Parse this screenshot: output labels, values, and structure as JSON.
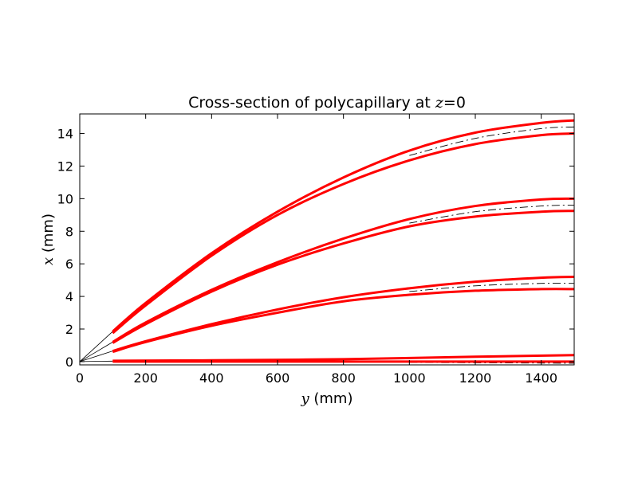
{
  "chart_data": {
    "type": "line",
    "title": {
      "text": "Cross-section of polycapillary at ",
      "var": "z",
      "suffix": "=0"
    },
    "xlabel": {
      "var": "y",
      "text": " (mm)"
    },
    "ylabel": {
      "var": "x",
      "text": " (mm)"
    },
    "xlim": [
      0,
      1500
    ],
    "ylim": [
      -0.2,
      15.2
    ],
    "xticks": [
      0,
      200,
      400,
      600,
      800,
      1000,
      1200,
      1400
    ],
    "yticks": [
      0,
      2,
      4,
      6,
      8,
      10,
      12,
      14
    ],
    "grid": false,
    "legend": "none",
    "series": [
      {
        "kind": "wall",
        "style": "red-solid",
        "x": [
          100,
          200,
          400,
          600,
          800,
          1000,
          1200,
          1400,
          1500
        ],
        "y": [
          1.85,
          3.6,
          6.65,
          9.2,
          11.3,
          12.95,
          14.05,
          14.65,
          14.8
        ]
      },
      {
        "kind": "wall",
        "style": "red-solid",
        "x": [
          100,
          200,
          400,
          600,
          800,
          1000,
          1200,
          1400,
          1500
        ],
        "y": [
          1.75,
          3.45,
          6.5,
          9.0,
          10.9,
          12.35,
          13.35,
          13.9,
          14.0
        ]
      },
      {
        "kind": "center",
        "style": "black-dashdot",
        "x": [
          1000,
          1200,
          1400,
          1500
        ],
        "y": [
          12.65,
          13.7,
          14.3,
          14.4
        ]
      },
      {
        "kind": "wall",
        "style": "red-solid",
        "x": [
          100,
          200,
          400,
          600,
          800,
          1000,
          1200,
          1400,
          1500
        ],
        "y": [
          1.2,
          2.4,
          4.4,
          6.1,
          7.55,
          8.75,
          9.55,
          9.95,
          10.0
        ]
      },
      {
        "kind": "wall",
        "style": "red-solid",
        "x": [
          100,
          200,
          400,
          600,
          800,
          1000,
          1200,
          1400,
          1500
        ],
        "y": [
          1.15,
          2.3,
          4.3,
          5.95,
          7.25,
          8.3,
          8.9,
          9.2,
          9.25
        ]
      },
      {
        "kind": "center",
        "style": "black-dashdot",
        "x": [
          1000,
          1200,
          1400,
          1500
        ],
        "y": [
          8.5,
          9.2,
          9.55,
          9.6
        ]
      },
      {
        "kind": "wall",
        "style": "red-solid",
        "x": [
          100,
          200,
          400,
          600,
          800,
          1000,
          1200,
          1400,
          1500
        ],
        "y": [
          0.65,
          1.25,
          2.3,
          3.2,
          3.95,
          4.5,
          4.9,
          5.15,
          5.2
        ]
      },
      {
        "kind": "wall",
        "style": "red-solid",
        "x": [
          100,
          200,
          400,
          600,
          800,
          1000,
          1200,
          1400,
          1500
        ],
        "y": [
          0.6,
          1.2,
          2.2,
          3.0,
          3.7,
          4.1,
          4.35,
          4.45,
          4.45
        ]
      },
      {
        "kind": "center",
        "style": "black-dashdot",
        "x": [
          1000,
          1200,
          1400,
          1500
        ],
        "y": [
          4.3,
          4.65,
          4.8,
          4.8
        ]
      },
      {
        "kind": "wall",
        "style": "red-solid",
        "x": [
          100,
          400,
          800,
          1200,
          1500
        ],
        "y": [
          0.05,
          0.08,
          0.15,
          0.3,
          0.4
        ]
      },
      {
        "kind": "wall",
        "style": "red-solid",
        "x": [
          100,
          1500
        ],
        "y": [
          0.0,
          0.0
        ]
      },
      {
        "kind": "center",
        "style": "black-dashdot",
        "x": [
          1000,
          1500
        ],
        "y": [
          -0.05,
          -0.1
        ]
      },
      {
        "kind": "guide",
        "style": "black-thin",
        "x": [
          0,
          100
        ],
        "y": [
          0,
          1.85
        ]
      },
      {
        "kind": "guide",
        "style": "black-thin",
        "x": [
          0,
          100
        ],
        "y": [
          0,
          1.2
        ]
      },
      {
        "kind": "guide",
        "style": "black-thin",
        "x": [
          0,
          100
        ],
        "y": [
          0,
          0.65
        ]
      },
      {
        "kind": "guide",
        "style": "black-thin",
        "x": [
          0,
          100
        ],
        "y": [
          0,
          0.03
        ]
      }
    ]
  }
}
